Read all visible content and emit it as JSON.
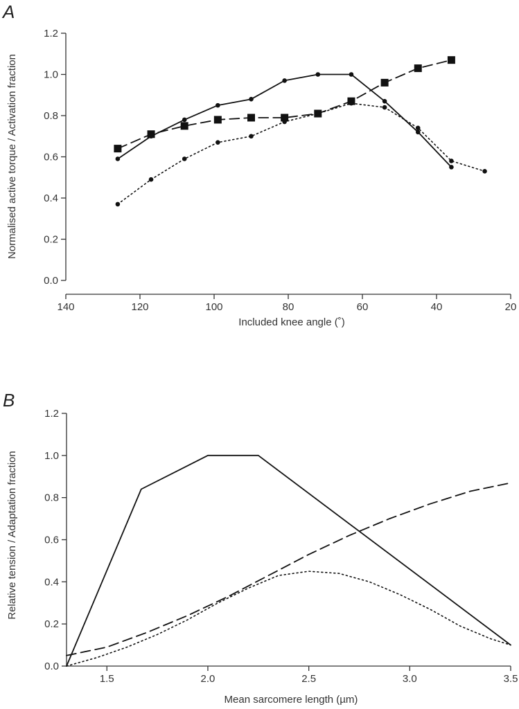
{
  "chart_data": [
    {
      "panel_label": "A",
      "type": "line",
      "xlabel": "Included knee angle (˚)",
      "ylabel": "Normalised active torque / Activation fraction",
      "xlim": [
        140,
        20
      ],
      "ylim": [
        0,
        1.2
      ],
      "xticks": [
        "140",
        "120",
        "100",
        "80",
        "60",
        "40",
        "20"
      ],
      "yticks": [
        "0.0",
        "0.2",
        "0.4",
        "0.6",
        "0.8",
        "1.0",
        "1.2"
      ],
      "series": [
        {
          "style": "solid",
          "marker": "circle",
          "x": [
            126,
            117,
            108,
            99,
            90,
            81,
            72,
            63,
            54,
            45,
            36
          ],
          "y": [
            0.59,
            0.7,
            0.78,
            0.85,
            0.88,
            0.97,
            1.0,
            1.0,
            0.87,
            0.72,
            0.55
          ]
        },
        {
          "style": "dashed",
          "marker": "square",
          "x": [
            126,
            117,
            108,
            99,
            90,
            81,
            72,
            63,
            54,
            45,
            36
          ],
          "y": [
            0.64,
            0.71,
            0.75,
            0.78,
            0.79,
            0.79,
            0.81,
            0.87,
            0.96,
            1.03,
            1.07
          ]
        },
        {
          "style": "dotted",
          "marker": "circle",
          "x": [
            126,
            117,
            108,
            99,
            90,
            81,
            72,
            63,
            54,
            45,
            36,
            27
          ],
          "y": [
            0.37,
            0.49,
            0.59,
            0.67,
            0.7,
            0.77,
            0.81,
            0.86,
            0.84,
            0.74,
            0.58,
            0.53
          ]
        }
      ]
    },
    {
      "panel_label": "B",
      "type": "line",
      "xlabel": "Mean sarcomere length (µm)",
      "ylabel": "Relative tension / Adaptation fraction",
      "xlim": [
        1.3,
        3.5
      ],
      "ylim": [
        0,
        1.2
      ],
      "xticks": [
        "1.5",
        "2.0",
        "2.5",
        "3.0",
        "3.5"
      ],
      "yticks": [
        "0.0",
        "0.2",
        "0.4",
        "0.6",
        "0.8",
        "1.0",
        "1.2"
      ],
      "series": [
        {
          "style": "solid",
          "marker": "none",
          "x": [
            1.3,
            1.67,
            2.0,
            2.25,
            3.5
          ],
          "y": [
            0.0,
            0.84,
            1.0,
            1.0,
            0.1
          ]
        },
        {
          "style": "dashed",
          "marker": "none",
          "x": [
            1.3,
            1.5,
            1.7,
            1.9,
            2.1,
            2.3,
            2.5,
            2.7,
            2.9,
            3.1,
            3.3,
            3.5
          ],
          "y": [
            0.05,
            0.09,
            0.16,
            0.24,
            0.33,
            0.43,
            0.53,
            0.62,
            0.7,
            0.77,
            0.83,
            0.87
          ]
        },
        {
          "style": "dotted",
          "marker": "none",
          "x": [
            1.3,
            1.45,
            1.6,
            1.75,
            1.9,
            2.05,
            2.2,
            2.35,
            2.5,
            2.65,
            2.8,
            2.95,
            3.1,
            3.25,
            3.4,
            3.5
          ],
          "y": [
            0.0,
            0.04,
            0.09,
            0.15,
            0.22,
            0.3,
            0.37,
            0.43,
            0.45,
            0.44,
            0.4,
            0.34,
            0.27,
            0.19,
            0.13,
            0.1
          ]
        }
      ]
    }
  ]
}
